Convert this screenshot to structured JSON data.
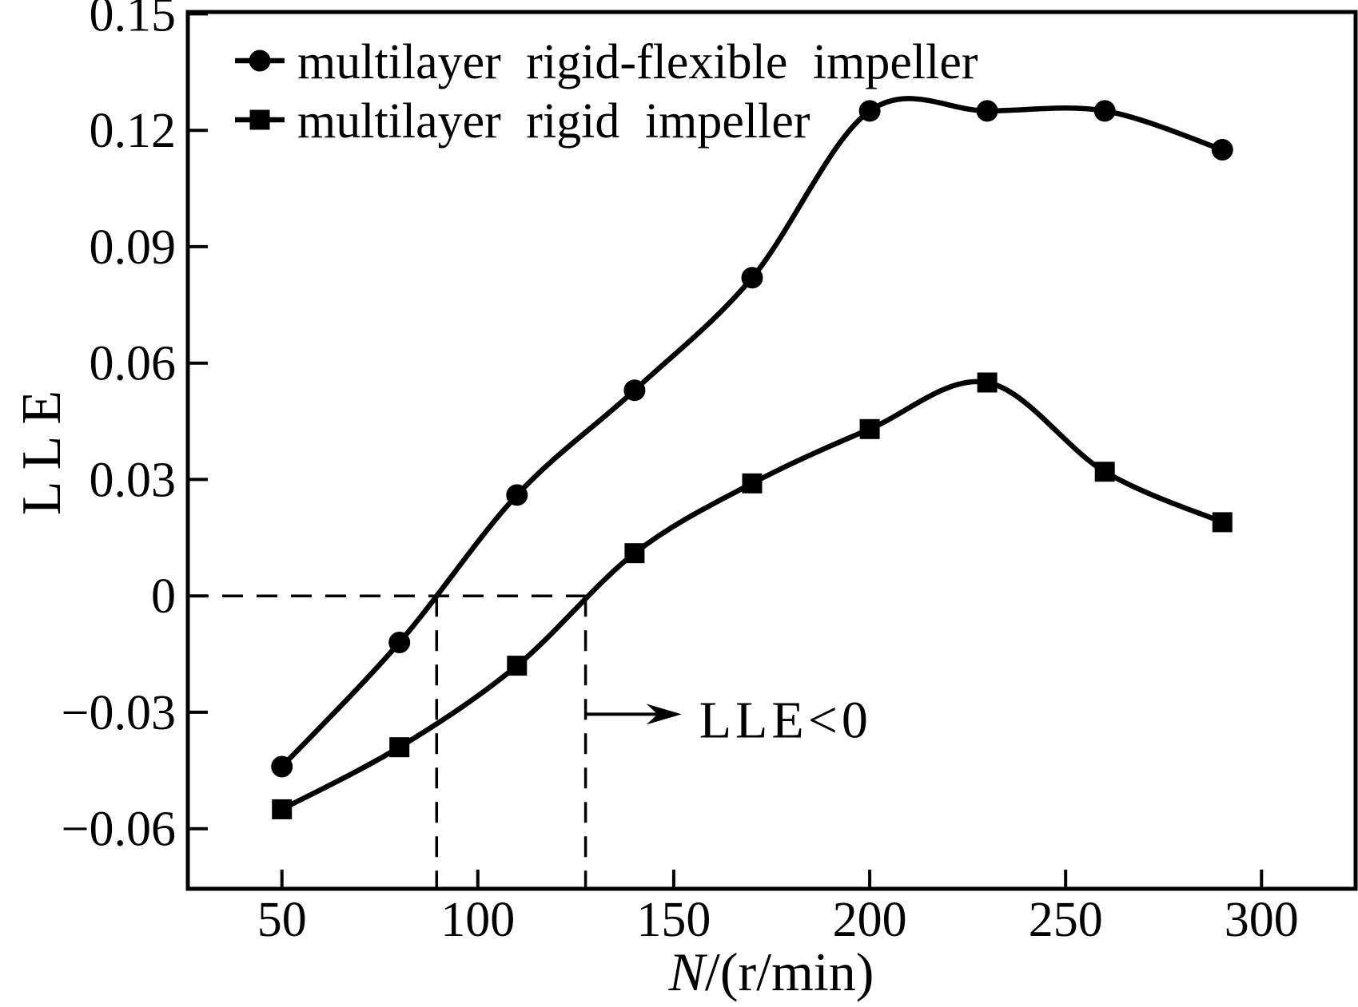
{
  "figure": {
    "background": "#ffffff",
    "ink_color": "#000000"
  },
  "chart_data": {
    "type": "line",
    "title": "",
    "xlabel": "N/(r/min)",
    "xlabel_italic_prefix": "N",
    "xlabel_rest": "/(r/min)",
    "ylabel": "LLE",
    "x_range": [
      26,
      324
    ],
    "y_range": [
      -0.0755,
      0.1505
    ],
    "x_ticks": [
      50,
      100,
      150,
      200,
      250,
      300
    ],
    "y_ticks": [
      {
        "value": 0.15,
        "label": "0.15"
      },
      {
        "value": 0.12,
        "label": "0.12"
      },
      {
        "value": 0.09,
        "label": "0.09"
      },
      {
        "value": 0.06,
        "label": "0.06"
      },
      {
        "value": 0.03,
        "label": "0.03"
      },
      {
        "value": 0,
        "label": "0"
      },
      {
        "value": -0.03,
        "label": "−0.03"
      },
      {
        "value": -0.06,
        "label": "−0.06"
      }
    ],
    "grid": false,
    "legend_position": "top-left-inside",
    "series": [
      {
        "name": "multilayer rigid-flexible impeller",
        "marker": "circle",
        "color": "#000000",
        "x": [
          50,
          80,
          110,
          140,
          170,
          200,
          230,
          260,
          290
        ],
        "y": [
          -0.044,
          -0.012,
          0.026,
          0.053,
          0.082,
          0.125,
          0.125,
          0.125,
          0.115
        ]
      },
      {
        "name": "multilayer rigid impeller",
        "marker": "square",
        "color": "#000000",
        "x": [
          50,
          80,
          110,
          140,
          170,
          200,
          230,
          260,
          290
        ],
        "y": [
          -0.055,
          -0.039,
          -0.018,
          0.011,
          0.029,
          0.043,
          0.055,
          0.032,
          0.019
        ]
      }
    ],
    "annotations": {
      "zero_line_value": 0,
      "zero_crossing_n_values": [
        89.5,
        127.5
      ],
      "arrow": {
        "label": "LLE<0",
        "lle": -0.0305,
        "from_n": 127.5,
        "to_n": 152
      }
    }
  }
}
